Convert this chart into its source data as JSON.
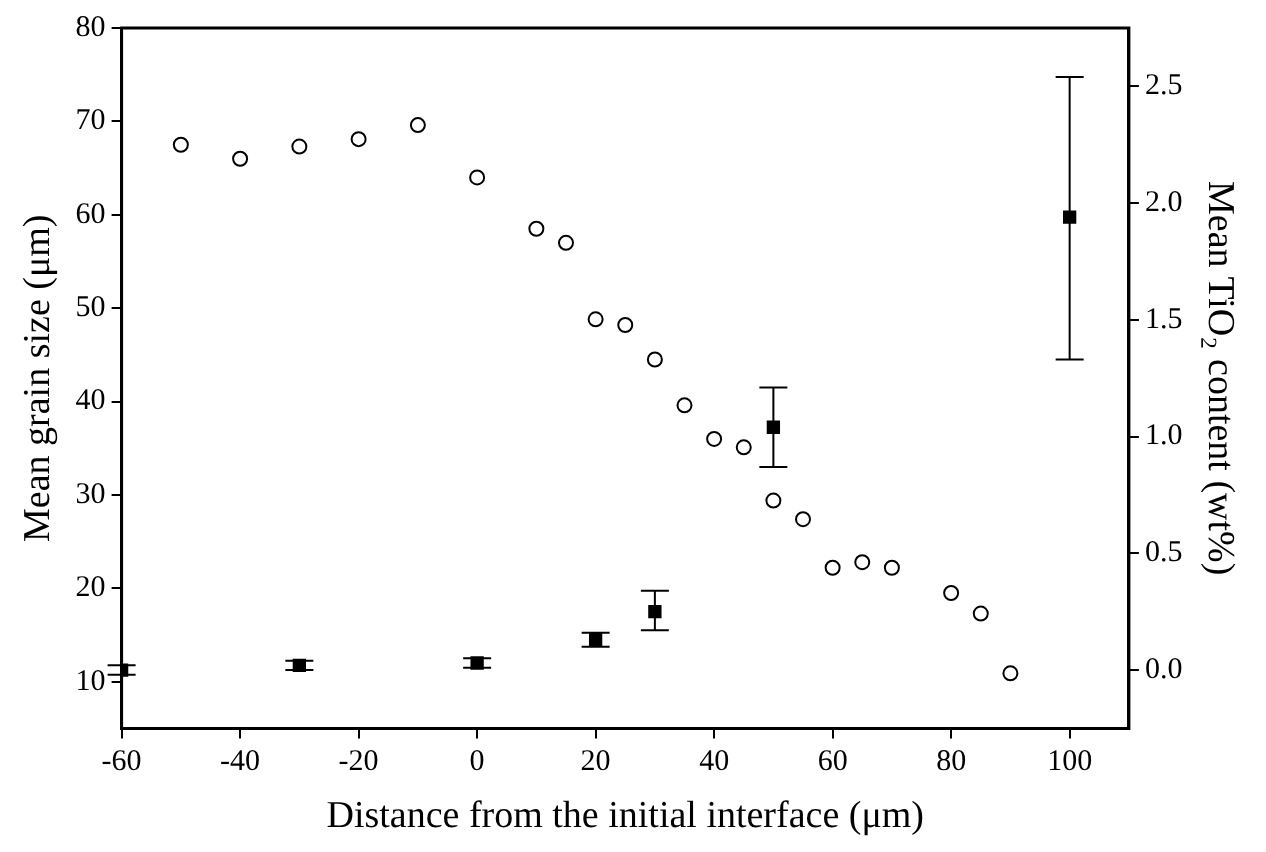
{
  "chart_data": {
    "type": "scatter",
    "xlabel": "Distance from the initial interface (μm)",
    "ylabel": "Mean grain size (μm)",
    "y2label": "Mean TiO₂ content (wt%)",
    "xlim": [
      -60,
      110
    ],
    "xticks": [
      -60,
      -40,
      -20,
      0,
      20,
      40,
      60,
      80,
      100
    ],
    "ylim": [
      5,
      80
    ],
    "yticks": [
      10,
      20,
      30,
      40,
      50,
      60,
      70,
      80
    ],
    "y2lim": [
      -0.25,
      2.75
    ],
    "y2ticks": [
      {
        "value": 0,
        "label": "0.0"
      },
      {
        "value": 0.5,
        "label": "0.5"
      },
      {
        "value": 1,
        "label": "1.0"
      },
      {
        "value": 1.5,
        "label": "1.5"
      },
      {
        "value": 2,
        "label": "2.0"
      },
      {
        "value": 2.5,
        "label": "2.5"
      }
    ],
    "grid": false,
    "legend": false,
    "series": [
      {
        "marker": "circle",
        "color": "#000000",
        "x": [
          -50,
          -40,
          -30,
          -20,
          -10,
          0,
          10,
          15,
          20,
          25,
          30,
          35,
          40,
          45,
          50,
          55,
          60,
          65,
          70,
          80,
          85,
          90
        ],
        "values": [
          67.5,
          66,
          67.3,
          68.1,
          69.6,
          64,
          58.5,
          57,
          48.8,
          48.2,
          44.5,
          39.6,
          36,
          35.1,
          29.4,
          27.4,
          22.2,
          22.8,
          22.2,
          19.5,
          17.3,
          10.9
        ]
      },
      {
        "marker": "square",
        "color": "#000000",
        "axis": "y2",
        "x": [
          -60,
          -30,
          0,
          20,
          30,
          50,
          100
        ],
        "values": [
          0,
          0.02,
          0.03,
          0.13,
          0.25,
          1.04,
          1.94
        ],
        "errors": [
          0.02,
          0.02,
          0.02,
          0.03,
          [
            0.17,
            0.34
          ],
          [
            0.87,
            1.21
          ],
          [
            1.33,
            2.54
          ]
        ]
      }
    ]
  }
}
